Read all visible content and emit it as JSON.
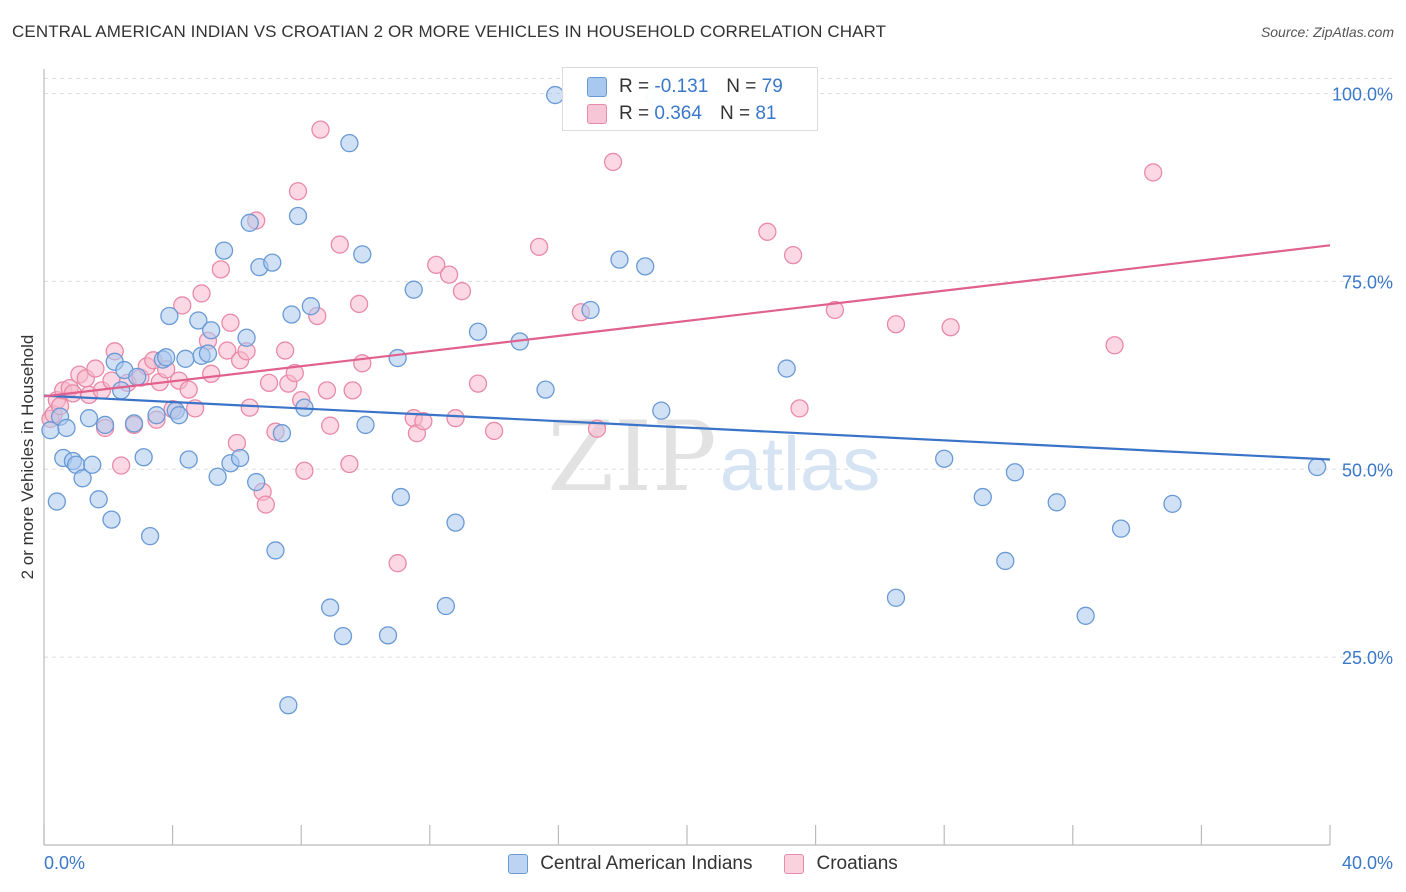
{
  "title": "CENTRAL AMERICAN INDIAN VS CROATIAN 2 OR MORE VEHICLES IN HOUSEHOLD CORRELATION CHART",
  "source": "Source: ZipAtlas.com",
  "watermark": {
    "zip": "ZIP",
    "atlas": "atlas"
  },
  "legend": {
    "series1": {
      "r_label": "R =",
      "r_value": "-0.131",
      "n_label": "N =",
      "n_value": "79"
    },
    "series2": {
      "r_label": "R =",
      "r_value": "0.364",
      "n_label": "N =",
      "n_value": "81"
    }
  },
  "colors": {
    "blue_fill": "#a9c8ef",
    "blue_stroke": "#6a9ad6",
    "blue_line": "#3a74c8",
    "pink_fill": "#f7b8cc",
    "pink_stroke": "#e98aa8",
    "pink_line": "#e0608e",
    "axis_text": "#3a78c9",
    "grid": "#dddddd"
  },
  "chart_data": {
    "type": "scatter",
    "title": "CENTRAL AMERICAN INDIAN VS CROATIAN 2 OR MORE VEHICLES IN HOUSEHOLD CORRELATION CHART",
    "xlabel": "",
    "ylabel": "2 or more Vehicles in Household",
    "xlim": [
      0,
      40
    ],
    "ylim": [
      0,
      103
    ],
    "x_tick_labels": [
      "0.0%",
      "40.0%"
    ],
    "y_tick_labels": [
      "25.0%",
      "50.0%",
      "75.0%",
      "100.0%"
    ],
    "y_ticks": [
      25,
      50,
      75,
      100
    ],
    "grid": true,
    "legend_position": "top-center",
    "series": [
      {
        "name": "Central American Indians",
        "r": -0.131,
        "n": 79,
        "trend": {
          "x": [
            0,
            40
          ],
          "y": [
            59.8,
            51.3
          ]
        },
        "points": [
          [
            0.2,
            55.2
          ],
          [
            0.4,
            45.7
          ],
          [
            0.5,
            57
          ],
          [
            0.6,
            51.5
          ],
          [
            0.7,
            55.5
          ],
          [
            0.9,
            51.1
          ],
          [
            1.0,
            50.6
          ],
          [
            1.2,
            48.8
          ],
          [
            1.4,
            56.8
          ],
          [
            1.5,
            50.6
          ],
          [
            1.7,
            46
          ],
          [
            1.9,
            55.9
          ],
          [
            2.1,
            43.3
          ],
          [
            2.2,
            64.3
          ],
          [
            2.4,
            60.5
          ],
          [
            2.5,
            63.2
          ],
          [
            2.8,
            56.1
          ],
          [
            2.9,
            62.3
          ],
          [
            3.1,
            51.6
          ],
          [
            3.3,
            41.1
          ],
          [
            3.5,
            57.2
          ],
          [
            3.7,
            64.6
          ],
          [
            3.8,
            64.9
          ],
          [
            3.9,
            70.4
          ],
          [
            4.1,
            57.8
          ],
          [
            4.2,
            57.2
          ],
          [
            4.4,
            64.7
          ],
          [
            4.5,
            51.3
          ],
          [
            4.8,
            69.8
          ],
          [
            4.9,
            65.1
          ],
          [
            5.1,
            65.4
          ],
          [
            5.2,
            68.5
          ],
          [
            5.4,
            49
          ],
          [
            5.6,
            79.1
          ],
          [
            5.8,
            50.8
          ],
          [
            6.1,
            51.5
          ],
          [
            6.3,
            67.5
          ],
          [
            6.4,
            82.8
          ],
          [
            6.6,
            48.3
          ],
          [
            6.7,
            76.9
          ],
          [
            7.1,
            77.5
          ],
          [
            7.2,
            39.2
          ],
          [
            7.4,
            54.8
          ],
          [
            7.6,
            18.6
          ],
          [
            7.7,
            70.6
          ],
          [
            7.9,
            83.7
          ],
          [
            8.1,
            58.2
          ],
          [
            8.3,
            71.7
          ],
          [
            8.9,
            31.6
          ],
          [
            9.3,
            27.8
          ],
          [
            9.5,
            93.4
          ],
          [
            9.9,
            78.6
          ],
          [
            10.0,
            55.9
          ],
          [
            10.7,
            27.9
          ],
          [
            11.0,
            64.8
          ],
          [
            11.1,
            46.3
          ],
          [
            11.5,
            73.9
          ],
          [
            12.5,
            31.8
          ],
          [
            12.8,
            42.9
          ],
          [
            13.5,
            68.3
          ],
          [
            14.8,
            67
          ],
          [
            15.6,
            60.6
          ],
          [
            15.9,
            99.8
          ],
          [
            17.0,
            71.2
          ],
          [
            17.9,
            77.9
          ],
          [
            18.7,
            77
          ],
          [
            19.0,
            99.6
          ],
          [
            19.2,
            57.8
          ],
          [
            23.1,
            63.4
          ],
          [
            26.5,
            32.9
          ],
          [
            28.0,
            51.4
          ],
          [
            29.2,
            46.3
          ],
          [
            29.9,
            37.8
          ],
          [
            30.2,
            49.6
          ],
          [
            31.5,
            45.6
          ],
          [
            32.4,
            30.5
          ],
          [
            33.5,
            42.1
          ],
          [
            35.1,
            45.4
          ],
          [
            39.6,
            50.3
          ]
        ]
      },
      {
        "name": "Croatians",
        "r": 0.364,
        "n": 81,
        "trend": {
          "x": [
            0,
            40
          ],
          "y": [
            59.7,
            79.8
          ]
        },
        "points": [
          [
            0.2,
            56.7
          ],
          [
            0.3,
            57.3
          ],
          [
            0.4,
            59.2
          ],
          [
            0.5,
            58.4
          ],
          [
            0.6,
            60.5
          ],
          [
            0.8,
            60.8
          ],
          [
            0.9,
            60.1
          ],
          [
            1.1,
            62.6
          ],
          [
            1.3,
            62.1
          ],
          [
            1.4,
            59.9
          ],
          [
            1.6,
            63.4
          ],
          [
            1.8,
            60.5
          ],
          [
            1.9,
            55.5
          ],
          [
            2.1,
            61.8
          ],
          [
            2.2,
            65.7
          ],
          [
            2.4,
            50.5
          ],
          [
            2.6,
            61.5
          ],
          [
            2.8,
            55.9
          ],
          [
            3.0,
            62.2
          ],
          [
            3.2,
            63.7
          ],
          [
            3.4,
            64.5
          ],
          [
            3.5,
            56.6
          ],
          [
            3.6,
            61.6
          ],
          [
            3.8,
            63.3
          ],
          [
            4.0,
            58
          ],
          [
            4.2,
            61.8
          ],
          [
            4.3,
            71.8
          ],
          [
            4.5,
            60.6
          ],
          [
            4.7,
            58.1
          ],
          [
            4.9,
            73.4
          ],
          [
            5.1,
            67.1
          ],
          [
            5.2,
            62.7
          ],
          [
            5.5,
            76.6
          ],
          [
            5.7,
            65.8
          ],
          [
            5.8,
            69.5
          ],
          [
            6.0,
            53.5
          ],
          [
            6.1,
            64.5
          ],
          [
            6.3,
            65.7
          ],
          [
            6.4,
            58.2
          ],
          [
            6.6,
            83.1
          ],
          [
            6.8,
            47
          ],
          [
            6.9,
            45.3
          ],
          [
            7.0,
            61.5
          ],
          [
            7.2,
            55
          ],
          [
            7.5,
            65.8
          ],
          [
            7.6,
            61.4
          ],
          [
            7.8,
            62.8
          ],
          [
            7.9,
            87
          ],
          [
            8.0,
            59.2
          ],
          [
            8.1,
            49.8
          ],
          [
            8.5,
            70.4
          ],
          [
            8.6,
            95.2
          ],
          [
            8.8,
            60.5
          ],
          [
            8.9,
            55.8
          ],
          [
            9.2,
            79.9
          ],
          [
            9.5,
            50.7
          ],
          [
            9.6,
            60.5
          ],
          [
            9.8,
            72
          ],
          [
            9.9,
            64.1
          ],
          [
            11.0,
            37.5
          ],
          [
            11.5,
            56.8
          ],
          [
            11.6,
            54.8
          ],
          [
            11.8,
            56.4
          ],
          [
            12.2,
            77.2
          ],
          [
            12.6,
            75.9
          ],
          [
            12.8,
            56.8
          ],
          [
            13.0,
            73.7
          ],
          [
            13.5,
            61.4
          ],
          [
            14.0,
            55.1
          ],
          [
            15.4,
            79.6
          ],
          [
            16.7,
            70.9
          ],
          [
            17.2,
            55.4
          ],
          [
            17.7,
            90.9
          ],
          [
            22.5,
            81.6
          ],
          [
            23.3,
            78.5
          ],
          [
            23.5,
            58.1
          ],
          [
            24.6,
            71.2
          ],
          [
            26.5,
            69.3
          ],
          [
            28.2,
            68.9
          ],
          [
            33.3,
            66.5
          ],
          [
            34.5,
            89.5
          ]
        ]
      }
    ]
  }
}
